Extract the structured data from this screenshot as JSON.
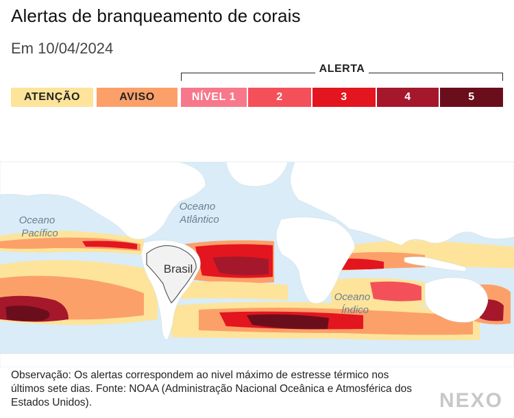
{
  "title": "Alertas de branqueamento de corais",
  "subtitle": "Em 10/04/2024",
  "legend": {
    "group_label": "ALERTA",
    "items": [
      {
        "label": "ATENÇÃO",
        "color": "#fde49a",
        "text_color": "#222222"
      },
      {
        "label": "AVISO",
        "color": "#fca06a",
        "text_color": "#222222"
      },
      {
        "label": "NÍVEL 1",
        "color": "#f7788a",
        "text_color": "#ffffff"
      },
      {
        "label": "2",
        "color": "#f4505a",
        "text_color": "#ffffff"
      },
      {
        "label": "3",
        "color": "#e3151f",
        "text_color": "#ffffff"
      },
      {
        "label": "4",
        "color": "#a5182b",
        "text_color": "#ffffff"
      },
      {
        "label": "5",
        "color": "#6b0e1c",
        "text_color": "#ffffff"
      }
    ]
  },
  "map": {
    "ocean_labels": [
      {
        "lines": [
          "Oceano",
          "Pacífico"
        ]
      },
      {
        "lines": [
          "Oceano",
          "Atlântico"
        ]
      },
      {
        "lines": [
          "Oceano",
          "Índico"
        ]
      }
    ],
    "country_label": "Brasil",
    "colors": {
      "ocean": "#d9ecf7",
      "land": "#ffffff",
      "highlight_land": "#f2f2f2",
      "border": "#555555"
    }
  },
  "note": "Observação: Os alertas correspondem ao nivel máximo de estresse térmico nos últimos sete dias. Fonte: NOAA (Administração Nacional Oceânica e Atmosférica dos Estados Unidos).",
  "logo": "NEXO"
}
